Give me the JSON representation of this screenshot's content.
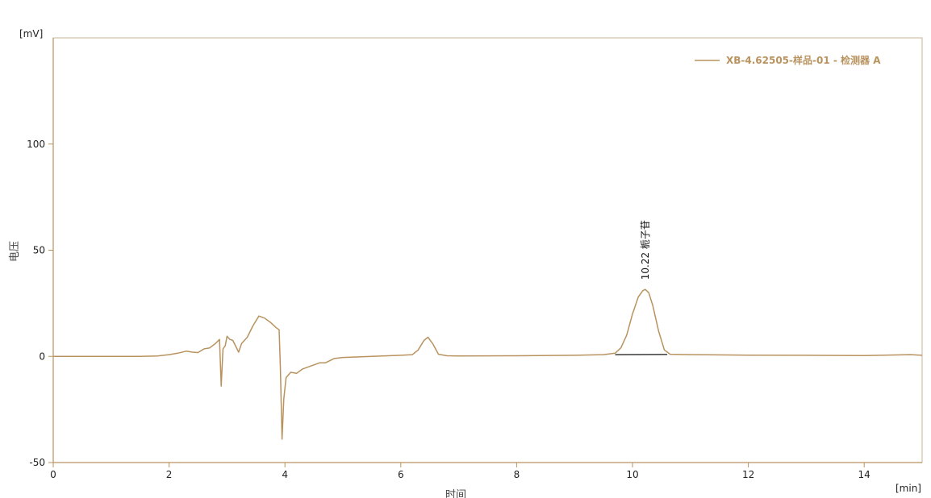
{
  "chart_data": {
    "type": "line",
    "x_unit": "[min]",
    "y_unit": "[mV]",
    "xlabel": "时间",
    "ylabel": "电压",
    "xlim": [
      0,
      15
    ],
    "ylim": [
      -50,
      150
    ],
    "x_ticks": [
      0,
      2,
      4,
      6,
      8,
      10,
      12,
      14
    ],
    "y_ticks": [
      -50,
      0,
      50,
      100
    ],
    "grid": false,
    "legend_position": "top-right",
    "series": [
      {
        "name": "XB-4.62505-样品-01 - 检测器 A",
        "color": "#b8935f",
        "x": [
          0,
          1.0,
          1.5,
          1.8,
          2.0,
          2.15,
          2.3,
          2.4,
          2.5,
          2.6,
          2.7,
          2.8,
          2.87,
          2.9,
          2.93,
          2.97,
          3.0,
          3.05,
          3.1,
          3.2,
          3.25,
          3.35,
          3.45,
          3.55,
          3.65,
          3.75,
          3.85,
          3.9,
          3.92,
          3.95,
          3.98,
          4.02,
          4.1,
          4.2,
          4.3,
          4.4,
          4.5,
          4.6,
          4.7,
          4.85,
          5.0,
          5.5,
          6.0,
          6.2,
          6.3,
          6.4,
          6.47,
          6.55,
          6.65,
          6.8,
          7.0,
          8.0,
          9.0,
          9.5,
          9.7,
          9.8,
          9.9,
          10.0,
          10.1,
          10.18,
          10.22,
          10.28,
          10.35,
          10.45,
          10.55,
          10.65,
          11.0,
          12.0,
          13.0,
          14.0,
          14.8,
          15.0
        ],
        "y": [
          0,
          0,
          0,
          0.2,
          0.8,
          1.5,
          2.5,
          2.0,
          1.8,
          3.5,
          4.0,
          6.0,
          8.0,
          -14.0,
          3.5,
          5.0,
          9.5,
          8.0,
          7.5,
          2.0,
          6.0,
          9.0,
          14.5,
          19.0,
          18.0,
          16.0,
          13.5,
          12.5,
          -5.0,
          -39.0,
          -20.0,
          -10.0,
          -7.5,
          -8.0,
          -6.0,
          -5.0,
          -4.0,
          -3.0,
          -3.0,
          -1.0,
          -0.5,
          0.0,
          0.5,
          0.8,
          3.0,
          7.5,
          9.0,
          6.0,
          1.0,
          0.3,
          0.2,
          0.3,
          0.5,
          0.8,
          1.5,
          4.0,
          10.0,
          20.0,
          28.0,
          31.0,
          31.5,
          30.0,
          24.0,
          12.0,
          3.0,
          1.0,
          0.8,
          0.6,
          0.5,
          0.4,
          0.8,
          0.5
        ]
      }
    ],
    "peaks": [
      {
        "retention_time": "10.22",
        "label": "栀子苷",
        "x": 10.22,
        "y": 31.5,
        "baseline": [
          [
            9.7,
            0.8
          ],
          [
            10.6,
            0.9
          ]
        ]
      }
    ]
  }
}
